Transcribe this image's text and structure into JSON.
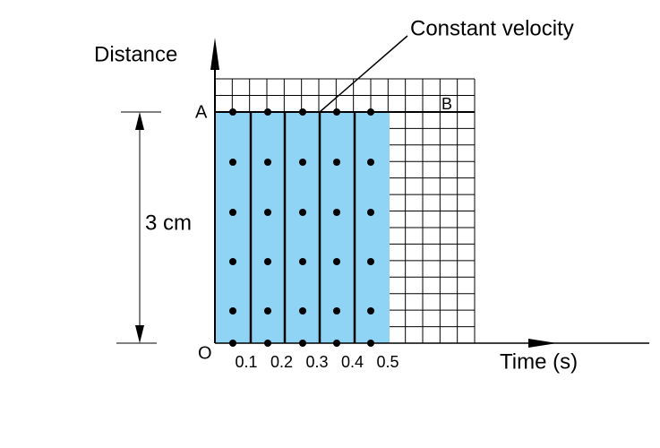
{
  "labels": {
    "y_axis": "Distance",
    "x_axis": "Time (s)",
    "annotation": "Constant velocity",
    "point_a": "A",
    "point_b": "B",
    "origin": "O",
    "height": "3 cm"
  },
  "time_labels": [
    "0.1",
    "0.2",
    "0.3",
    "0.4",
    "0.5"
  ]
}
